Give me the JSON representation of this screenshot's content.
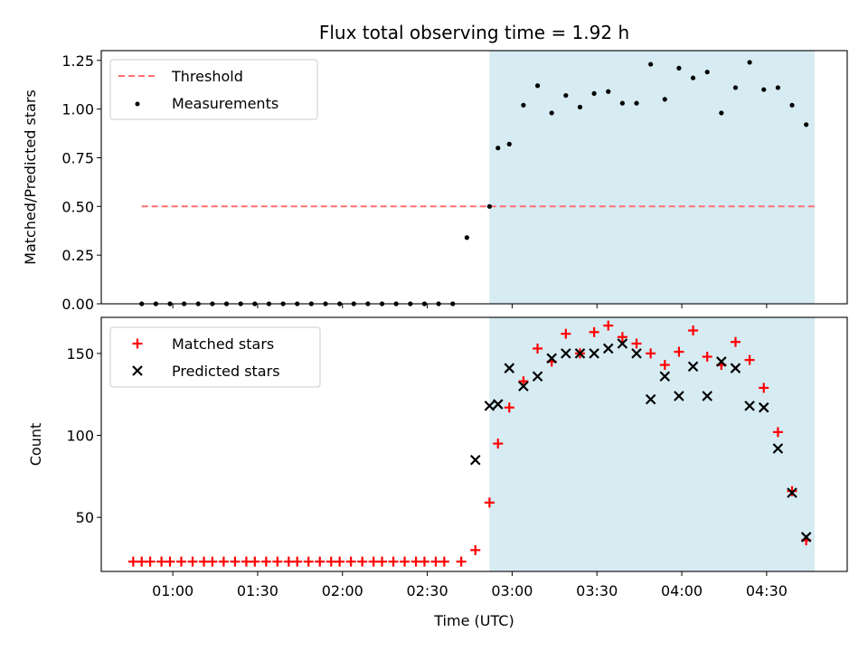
{
  "chart_data": [
    {
      "type": "scatter",
      "title": "Flux total observing time = 1.92 h",
      "xlabel": "",
      "ylabel": "Matched/Predicted stars",
      "ylim": [
        0,
        1.3
      ],
      "yticks": [
        "0.00",
        "0.25",
        "0.50",
        "0.75",
        "1.00",
        "1.25"
      ],
      "legend_position": "upper-left",
      "observing_window": [
        "02:52",
        "04:47"
      ],
      "observing_window_color": "#add8e6",
      "threshold": {
        "name": "Threshold",
        "value": 0.5,
        "color": "#ff6f6f",
        "style": "dashed"
      },
      "series": [
        {
          "name": "Measurements",
          "color": "#000000",
          "marker": "dot",
          "x": [
            "00:49",
            "00:54",
            "00:59",
            "01:04",
            "01:09",
            "01:14",
            "01:19",
            "01:24",
            "01:29",
            "01:34",
            "01:39",
            "01:44",
            "01:49",
            "01:54",
            "01:59",
            "02:04",
            "02:09",
            "02:14",
            "02:19",
            "02:24",
            "02:29",
            "02:34",
            "02:39",
            "02:44",
            "02:52",
            "02:55",
            "02:59",
            "03:04",
            "03:09",
            "03:14",
            "03:19",
            "03:24",
            "03:29",
            "03:34",
            "03:39",
            "03:44",
            "03:49",
            "03:54",
            "03:59",
            "04:04",
            "04:09",
            "04:14",
            "04:19",
            "04:24",
            "04:29",
            "04:34",
            "04:39",
            "04:44"
          ],
          "y": [
            0,
            0,
            0,
            0,
            0,
            0,
            0,
            0,
            0,
            0,
            0,
            0,
            0,
            0,
            0,
            0,
            0,
            0,
            0,
            0,
            0,
            0,
            0,
            0.34,
            0.5,
            0.8,
            0.82,
            1.02,
            1.12,
            0.98,
            1.07,
            1.01,
            1.08,
            1.09,
            1.03,
            1.03,
            1.23,
            1.05,
            1.21,
            1.16,
            1.19,
            0.98,
            1.11,
            1.24,
            1.1,
            1.11,
            1.02,
            0.92
          ]
        }
      ]
    },
    {
      "type": "scatter",
      "title": "",
      "xlabel": "Time (UTC)",
      "ylabel": "Count",
      "ylim": [
        17,
        172
      ],
      "yticks": [
        "50",
        "100",
        "150"
      ],
      "xticks": [
        "01:00",
        "01:30",
        "02:00",
        "02:30",
        "03:00",
        "03:30",
        "04:00",
        "04:30"
      ],
      "legend_position": "upper-left",
      "observing_window": [
        "02:52",
        "04:47"
      ],
      "series": [
        {
          "name": "Matched stars",
          "color": "#ff0000",
          "marker": "plus",
          "x": [
            "00:46",
            "00:49",
            "00:52",
            "00:56",
            "00:59",
            "01:03",
            "01:07",
            "01:11",
            "01:14",
            "01:18",
            "01:22",
            "01:26",
            "01:29",
            "01:33",
            "01:37",
            "01:41",
            "01:44",
            "01:48",
            "01:52",
            "01:56",
            "01:59",
            "02:03",
            "02:07",
            "02:11",
            "02:14",
            "02:18",
            "02:22",
            "02:26",
            "02:29",
            "02:33",
            "02:36",
            "02:42",
            "02:47",
            "02:52",
            "02:55",
            "02:59",
            "03:04",
            "03:09",
            "03:14",
            "03:19",
            "03:24",
            "03:29",
            "03:34",
            "03:39",
            "03:44",
            "03:49",
            "03:54",
            "03:59",
            "04:04",
            "04:09",
            "04:14",
            "04:19",
            "04:24",
            "04:29",
            "04:34",
            "04:39",
            "04:44"
          ],
          "y": [
            23,
            23,
            23,
            23,
            23,
            23,
            23,
            23,
            23,
            23,
            23,
            23,
            23,
            23,
            23,
            23,
            23,
            23,
            23,
            23,
            23,
            23,
            23,
            23,
            23,
            23,
            23,
            23,
            23,
            23,
            23,
            23,
            30,
            59,
            95,
            117,
            133,
            153,
            145,
            162,
            150,
            163,
            167,
            160,
            156,
            150,
            143,
            151,
            164,
            148,
            143,
            157,
            146,
            129,
            102,
            66,
            36
          ]
        },
        {
          "name": "Predicted stars",
          "color": "#000000",
          "marker": "x",
          "x": [
            "02:47",
            "02:52",
            "02:55",
            "02:59",
            "03:04",
            "03:09",
            "03:14",
            "03:19",
            "03:24",
            "03:29",
            "03:34",
            "03:39",
            "03:44",
            "03:49",
            "03:54",
            "03:59",
            "04:04",
            "04:09",
            "04:14",
            "04:19",
            "04:24",
            "04:29",
            "04:34",
            "04:39",
            "04:44"
          ],
          "y": [
            85,
            118,
            119,
            141,
            130,
            136,
            147,
            150,
            150,
            150,
            153,
            156,
            150,
            122,
            136,
            124,
            142,
            124,
            145,
            141,
            118,
            117,
            92,
            65,
            38
          ]
        }
      ]
    }
  ]
}
